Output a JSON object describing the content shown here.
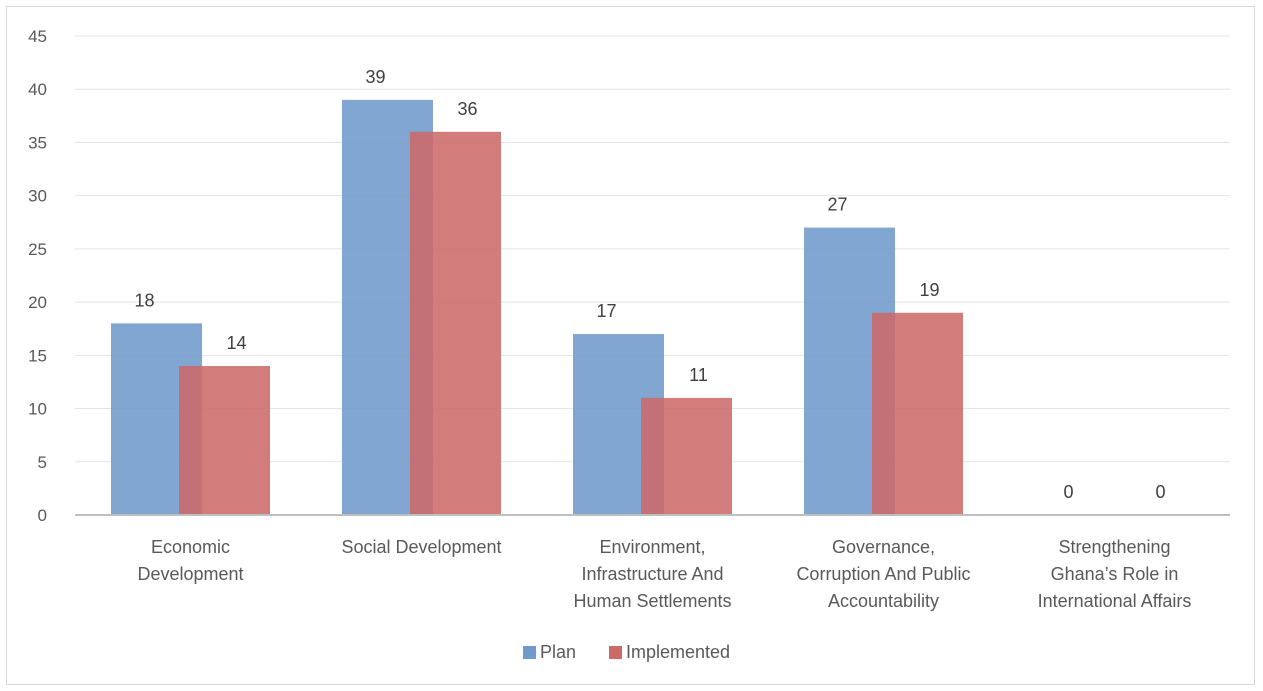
{
  "chart_data": {
    "type": "bar",
    "categories": [
      [
        "Economic",
        "Development"
      ],
      [
        "Social Development"
      ],
      [
        "Environment,",
        "Infrastructure And",
        "Human Settlements"
      ],
      [
        "Governance,",
        "Corruption And Public",
        "Accountability"
      ],
      [
        "Strengthening",
        "Ghana’s Role in",
        "International Affairs"
      ]
    ],
    "series": [
      {
        "name": "Plan",
        "values": [
          18,
          39,
          17,
          27,
          0
        ],
        "color": "#6f9acb"
      },
      {
        "name": "Implemented",
        "values": [
          14,
          36,
          11,
          19,
          0
        ],
        "color": "#cc6a6a"
      }
    ],
    "ylim": [
      0,
      45
    ],
    "yticks": [
      0,
      5,
      10,
      15,
      20,
      25,
      30,
      35,
      40,
      45
    ],
    "grid": true,
    "legend_position": "bottom",
    "data_labels": true
  }
}
